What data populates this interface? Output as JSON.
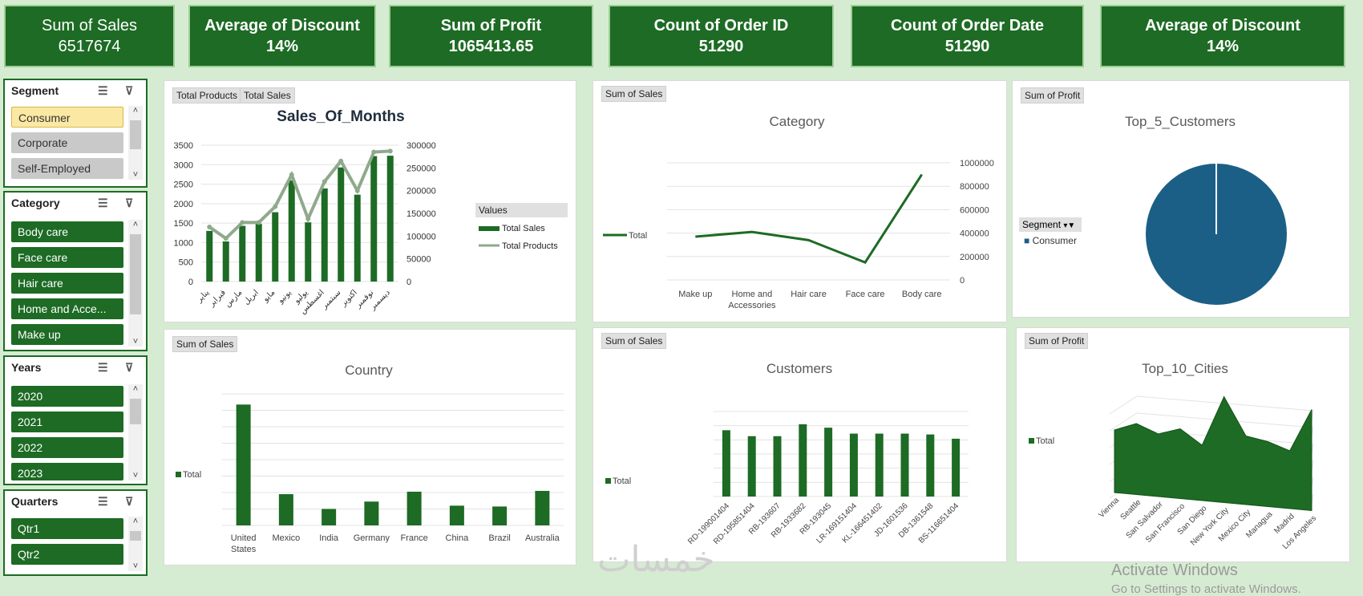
{
  "kpis": [
    {
      "title": "Sum of Sales",
      "value": "6517674"
    },
    {
      "title": "Average of Discount",
      "value": "14%"
    },
    {
      "title": "Sum of Profit",
      "value": "1065413.65"
    },
    {
      "title": "Count of Order ID",
      "value": "51290"
    },
    {
      "title": "Count of Order Date",
      "value": "51290"
    },
    {
      "title": "Average of Discount",
      "value": "14%"
    }
  ],
  "slicers": {
    "segment": {
      "title": "Segment",
      "items": [
        "Consumer",
        "Corporate",
        "Self-Employed"
      ]
    },
    "category": {
      "title": "Category",
      "items": [
        "Body care",
        "Face care",
        "Hair care",
        "Home and Acce...",
        "Make up"
      ]
    },
    "years": {
      "title": "Years",
      "items": [
        "2020",
        "2021",
        "2022",
        "2023"
      ]
    },
    "quarters": {
      "title": "Quarters",
      "items": [
        "Qtr1",
        "Qtr2"
      ]
    }
  },
  "tags": {
    "months_a": "Total Products",
    "months_b": "Total Sales",
    "category": "Sum of Sales",
    "top5": "Sum of Profit",
    "country": "Sum of Sales",
    "customers": "Sum of Sales",
    "cities": "Sum of Profit"
  },
  "top5_legend": {
    "filter_label": "Segment",
    "item": "Consumer"
  },
  "watermark": {
    "line1": "Activate Windows",
    "line2": "Go to Settings to activate Windows.",
    "brand": "خمسات"
  },
  "colors": {
    "green": "#1d6b24",
    "grey_line": "#8fa98c",
    "pie": "#1b5f86"
  },
  "chart_data": [
    {
      "id": "months",
      "type": "bar",
      "title": "Sales_Of_Months",
      "categories": [
        "يناير",
        "فبراير",
        "مارس",
        "ابريل",
        "مايو",
        "يونيو",
        "يوليو",
        "اغسطس",
        "سبتمبر",
        "اكتوبر",
        "نوفمبر",
        "ديسمبر"
      ],
      "series": [
        {
          "name": "Total Sales",
          "type": "bar",
          "axis": "left",
          "values": [
            1300,
            1030,
            1430,
            1480,
            1780,
            2600,
            1520,
            2390,
            2930,
            2230,
            3220,
            3230
          ]
        },
        {
          "name": "Total Products",
          "type": "line",
          "axis": "right",
          "values": [
            120000,
            95000,
            130000,
            130000,
            165000,
            235000,
            138000,
            220000,
            265000,
            200000,
            285000,
            287000
          ]
        }
      ],
      "yleft": [
        0,
        3500
      ],
      "yleft_ticks": [
        0,
        500,
        1000,
        1500,
        2000,
        2500,
        3000,
        3500
      ],
      "yright": [
        0,
        300000
      ],
      "yright_ticks": [
        0,
        50000,
        100000,
        150000,
        200000,
        250000,
        300000
      ],
      "legend_title": "Values"
    },
    {
      "id": "category",
      "type": "line",
      "title": "Category",
      "categories": [
        "Make up",
        "Home and Accessories",
        "Hair care",
        "Face care",
        "Body care"
      ],
      "series": [
        {
          "name": "Total",
          "values": [
            370000,
            410000,
            340000,
            150000,
            900000
          ]
        }
      ],
      "ylim": [
        0,
        1000000
      ],
      "yticks": [
        0,
        200000,
        400000,
        600000,
        800000,
        1000000
      ]
    },
    {
      "id": "top5",
      "type": "pie",
      "title": "Top_5_Customers",
      "labels": [
        "Consumer"
      ],
      "values": [
        100
      ]
    },
    {
      "id": "country",
      "type": "bar",
      "title": "Country",
      "categories": [
        "United States",
        "Mexico",
        "India",
        "Germany",
        "France",
        "China",
        "Brazil",
        "Australia"
      ],
      "series": [
        {
          "name": "Total",
          "values": [
            1470000,
            380000,
            200000,
            290000,
            410000,
            240000,
            230000,
            420000
          ]
        }
      ],
      "ylim": [
        0,
        1600000
      ]
    },
    {
      "id": "customers",
      "type": "bar",
      "title": "Customers",
      "categories": [
        "RD-199001404",
        "RD-195851404",
        "RB-193607",
        "RB-1933682",
        "RB-193045",
        "LR-169151404",
        "KL-166451402",
        "JD-1601536",
        "DB-1361548",
        "BS-116651404"
      ],
      "series": [
        {
          "name": "Total",
          "values": [
            7800,
            7100,
            7100,
            8500,
            8100,
            7400,
            7400,
            7400,
            7300,
            6800
          ]
        }
      ],
      "ylim": [
        0,
        10000
      ]
    },
    {
      "id": "cities",
      "type": "area",
      "title": "Top_10_Cities",
      "categories": [
        "Vienna",
        "Seattle",
        "San Salvador",
        "San Francisco",
        "San Diego",
        "New York City",
        "Mexico City",
        "Managua",
        "Madrid",
        "Los Angeles"
      ],
      "series": [
        {
          "name": "Total",
          "values": [
            5200,
            5900,
            5200,
            5800,
            4600,
            8800,
            5700,
            5400,
            4800,
            8400
          ]
        }
      ],
      "ylim": [
        0,
        10000
      ]
    }
  ]
}
